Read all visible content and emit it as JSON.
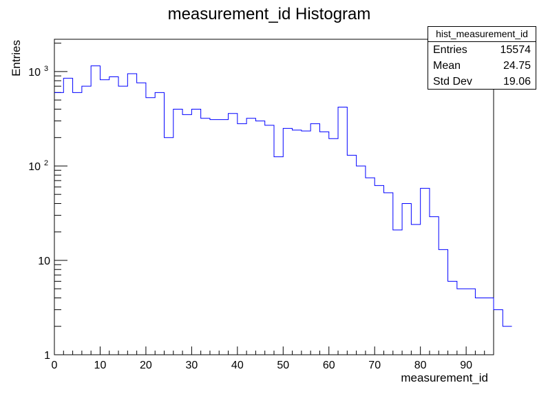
{
  "chart_data": {
    "type": "histogram",
    "title": "measurement_id Histogram",
    "xlabel": "measurement_id",
    "ylabel": "Entries",
    "xlim": [
      0,
      96
    ],
    "ylim": [
      1,
      2200
    ],
    "yscale": "log",
    "bin_width": 2,
    "bin_edges_start": 0,
    "line_color": "#0000ff",
    "values": [
      600,
      850,
      600,
      700,
      1150,
      820,
      880,
      700,
      950,
      760,
      530,
      600,
      200,
      400,
      350,
      400,
      320,
      310,
      310,
      360,
      280,
      320,
      300,
      270,
      125,
      250,
      240,
      235,
      280,
      230,
      195,
      420,
      130,
      100,
      75,
      62,
      52,
      21,
      40,
      24,
      58,
      29,
      13,
      6,
      5,
      5,
      4,
      4,
      3,
      2
    ],
    "x_ticks": [
      "0",
      "10",
      "20",
      "30",
      "40",
      "50",
      "60",
      "70",
      "80",
      "90"
    ],
    "y_ticks": [
      {
        "value": 1,
        "base": "1",
        "exp": ""
      },
      {
        "value": 10,
        "base": "10",
        "exp": ""
      },
      {
        "value": 100,
        "base": "10",
        "exp": "2"
      },
      {
        "value": 1000,
        "base": "10",
        "exp": "3"
      }
    ],
    "grid": false,
    "legend": "none"
  },
  "stats": {
    "name": "hist_measurement_id",
    "rows": [
      {
        "label": "Entries",
        "value": "15574"
      },
      {
        "label": "Mean",
        "value": "24.75"
      },
      {
        "label": "Std Dev",
        "value": "19.06"
      }
    ]
  }
}
